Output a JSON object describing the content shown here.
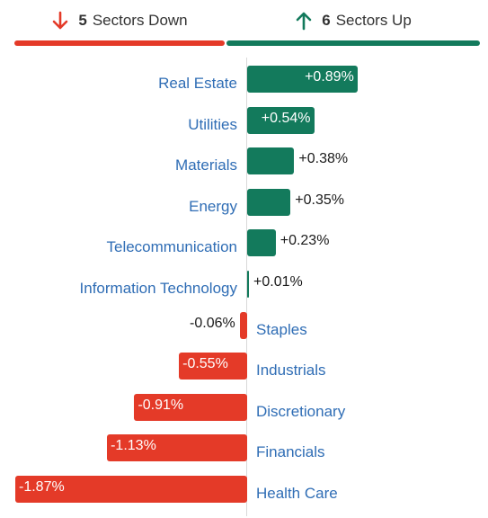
{
  "header": {
    "down_count": "5",
    "down_label": "Sectors Down",
    "up_count": "6",
    "up_label": "Sectors Up"
  },
  "colors": {
    "up": "#137a5c",
    "down": "#e43a28",
    "label": "#2f6db5"
  },
  "chart_data": {
    "type": "bar",
    "unit": "%",
    "categories": [
      "Real Estate",
      "Utilities",
      "Materials",
      "Energy",
      "Telecommunication",
      "Information Technology",
      "Staples",
      "Industrials",
      "Discretionary",
      "Financials",
      "Health Care"
    ],
    "values": [
      0.89,
      0.54,
      0.38,
      0.35,
      0.23,
      0.01,
      -0.06,
      -0.55,
      -0.91,
      -1.13,
      -1.87
    ],
    "value_labels": [
      "+0.89%",
      "+0.54%",
      "+0.38%",
      "+0.35%",
      "+0.23%",
      "+0.01%",
      "-0.06%",
      "-0.55%",
      "-0.91%",
      "-1.13%",
      "-1.87%"
    ]
  }
}
